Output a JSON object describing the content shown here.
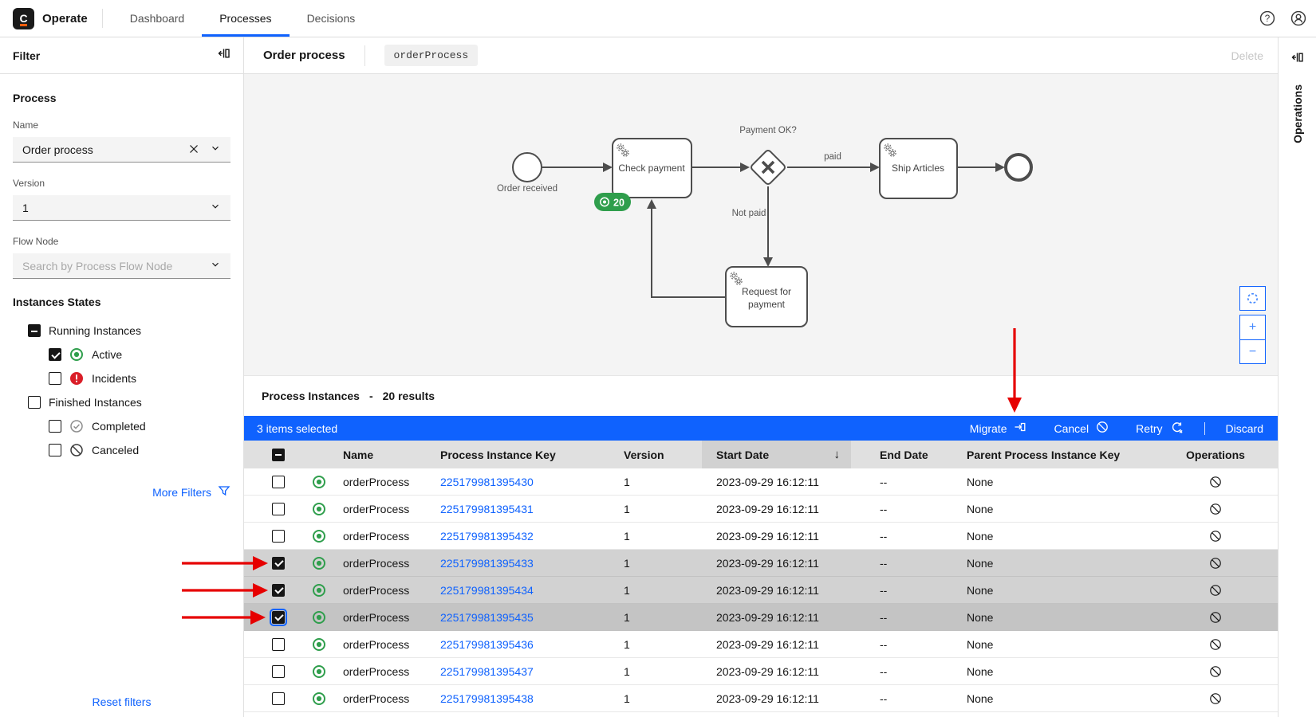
{
  "colors": {
    "primary_blue": "#0f62fe",
    "annotation_red": "#e60000",
    "active_green": "#2f9e4c",
    "incident_red": "#da1e28",
    "logo_orange": "#fc5d0d"
  },
  "header": {
    "logo_letter": "C",
    "app_name": "Operate",
    "tabs": [
      {
        "label": "Dashboard",
        "active": false
      },
      {
        "label": "Processes",
        "active": true
      },
      {
        "label": "Decisions",
        "active": false
      }
    ]
  },
  "filter": {
    "title": "Filter",
    "section_title": "Process",
    "name_field": {
      "label": "Name",
      "value": "Order process"
    },
    "version_field": {
      "label": "Version",
      "value": "1"
    },
    "flow_node_field": {
      "label": "Flow Node",
      "placeholder": "Search by Process Flow Node"
    },
    "states_title": "Instances States",
    "states": [
      {
        "label": "Running Instances",
        "checkbox": "indeterminate",
        "indent": 0,
        "icon": null
      },
      {
        "label": "Active",
        "checkbox": "checked",
        "indent": 1,
        "icon": "active"
      },
      {
        "label": "Incidents",
        "checkbox": "unchecked",
        "indent": 1,
        "icon": "incident"
      },
      {
        "label": "Finished Instances",
        "checkbox": "unchecked",
        "indent": 0,
        "icon": null
      },
      {
        "label": "Completed",
        "checkbox": "unchecked",
        "indent": 1,
        "icon": "completed"
      },
      {
        "label": "Canceled",
        "checkbox": "unchecked",
        "indent": 1,
        "icon": "canceled"
      }
    ],
    "more_filters": "More Filters",
    "reset_filters": "Reset filters"
  },
  "process_header": {
    "title": "Order process",
    "badge": "orderProcess",
    "delete_label": "Delete"
  },
  "diagram": {
    "start_event_label": "Order received",
    "task_check_label": "Check payment",
    "gateway_label": "Payment OK?",
    "flow_paid_label": "paid",
    "flow_not_paid_label": "Not paid",
    "task_ship_label": "Ship Articles",
    "task_request_lines": [
      "Request for",
      "payment"
    ],
    "instance_count_badge": "20",
    "zoom_in_label": "+",
    "zoom_out_label": "−"
  },
  "operations_panel": {
    "title": "Operations"
  },
  "instances": {
    "title": "Process Instances",
    "results_separator": "-",
    "results": "20 results",
    "selection_text": "3 items selected",
    "actions": {
      "migrate": "Migrate",
      "cancel": "Cancel",
      "retry": "Retry",
      "discard": "Discard"
    },
    "columns": {
      "name": "Name",
      "key": "Process Instance Key",
      "version": "Version",
      "start": "Start Date",
      "end": "End Date",
      "parent": "Parent Process Instance Key",
      "operations": "Operations"
    },
    "sort_column": "Start Date",
    "sort_direction": "descending",
    "rows": [
      {
        "name": "orderProcess",
        "key": "225179981395430",
        "version": "1",
        "start": "2023-09-29 16:12:11",
        "end": "--",
        "parent": "None",
        "selected": false,
        "focused": false
      },
      {
        "name": "orderProcess",
        "key": "225179981395431",
        "version": "1",
        "start": "2023-09-29 16:12:11",
        "end": "--",
        "parent": "None",
        "selected": false,
        "focused": false
      },
      {
        "name": "orderProcess",
        "key": "225179981395432",
        "version": "1",
        "start": "2023-09-29 16:12:11",
        "end": "--",
        "parent": "None",
        "selected": false,
        "focused": false
      },
      {
        "name": "orderProcess",
        "key": "225179981395433",
        "version": "1",
        "start": "2023-09-29 16:12:11",
        "end": "--",
        "parent": "None",
        "selected": true,
        "focused": false
      },
      {
        "name": "orderProcess",
        "key": "225179981395434",
        "version": "1",
        "start": "2023-09-29 16:12:11",
        "end": "--",
        "parent": "None",
        "selected": true,
        "focused": false
      },
      {
        "name": "orderProcess",
        "key": "225179981395435",
        "version": "1",
        "start": "2023-09-29 16:12:11",
        "end": "--",
        "parent": "None",
        "selected": true,
        "focused": true
      },
      {
        "name": "orderProcess",
        "key": "225179981395436",
        "version": "1",
        "start": "2023-09-29 16:12:11",
        "end": "--",
        "parent": "None",
        "selected": false,
        "focused": false
      },
      {
        "name": "orderProcess",
        "key": "225179981395437",
        "version": "1",
        "start": "2023-09-29 16:12:11",
        "end": "--",
        "parent": "None",
        "selected": false,
        "focused": false
      },
      {
        "name": "orderProcess",
        "key": "225179981395438",
        "version": "1",
        "start": "2023-09-29 16:12:11",
        "end": "--",
        "parent": "None",
        "selected": false,
        "focused": false
      }
    ]
  }
}
